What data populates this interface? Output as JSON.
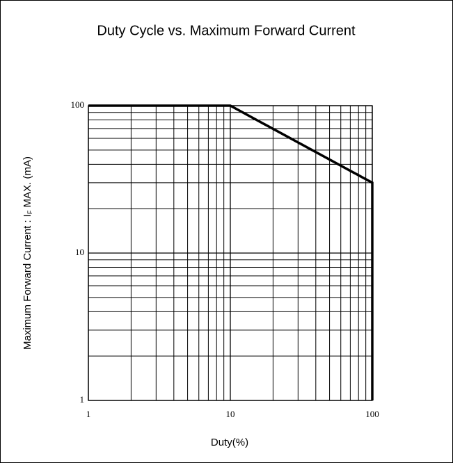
{
  "chart_data": {
    "type": "line",
    "title": "Duty Cycle vs. Maximum Forward Current",
    "xlabel": "Duty(%)",
    "ylabel": [
      "Maximum Forward Current : I",
      "F",
      " MAX. (mA)"
    ],
    "xscale": "log",
    "yscale": "log",
    "xlim": [
      1,
      100
    ],
    "ylim": [
      1,
      100
    ],
    "xticks": [
      1,
      10,
      100
    ],
    "yticks": [
      1,
      10,
      100
    ],
    "xminor": [
      2,
      3,
      4,
      5,
      6,
      7,
      8,
      9,
      20,
      30,
      40,
      50,
      60,
      70,
      80,
      90
    ],
    "yminor": [
      2,
      3,
      4,
      5,
      6,
      7,
      8,
      9,
      20,
      30,
      40,
      50,
      60,
      70,
      80,
      90
    ],
    "grid": true,
    "series": [
      {
        "name": null,
        "color": "#000000",
        "x": [
          1,
          10,
          100,
          100
        ],
        "values": [
          100,
          100,
          30,
          1
        ]
      }
    ]
  }
}
